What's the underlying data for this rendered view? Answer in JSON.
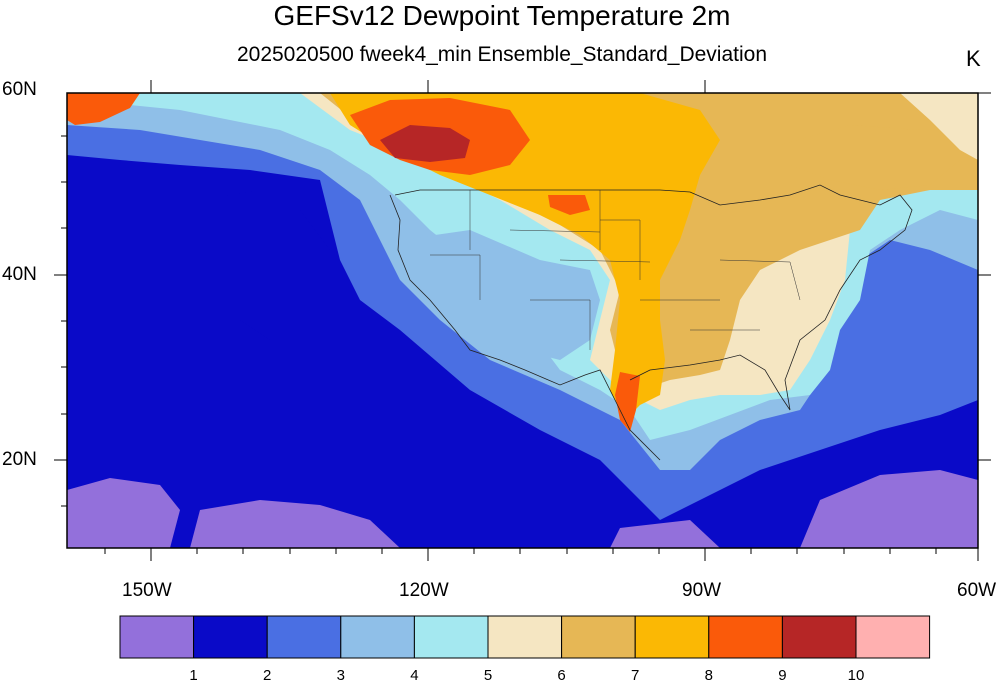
{
  "title": "GEFSv12 Dewpoint Temperature 2m",
  "subtitle": "2025020500 fweek4_min Ensemble_Standard_Deviation",
  "units": "K",
  "lat_labels": [
    "60N",
    "40N",
    "20N"
  ],
  "lon_labels": [
    "150W",
    "120W",
    "90W",
    "60W"
  ],
  "colorbar": {
    "levels": [
      "1",
      "2",
      "3",
      "4",
      "5",
      "6",
      "7",
      "8",
      "9",
      "10"
    ],
    "colors": [
      "#9370db",
      "#0a0ac8",
      "#4a6fe3",
      "#8fbfe8",
      "#a4e8f0",
      "#f5e6c2",
      "#e6b755",
      "#fbb804",
      "#fa5a0a",
      "#b62626",
      "#ffb0b0"
    ]
  },
  "palette": {
    "ocean_deep": "#0a0ac8",
    "ocean_mid": "#4a6fe3",
    "lightblue": "#8fbfe8",
    "cyan": "#a4e8f0",
    "cream": "#f5e6c2",
    "tan": "#e6b755",
    "orange": "#fbb804",
    "darkorange": "#fa5a0a",
    "red": "#b62626",
    "purple": "#9370db"
  }
}
